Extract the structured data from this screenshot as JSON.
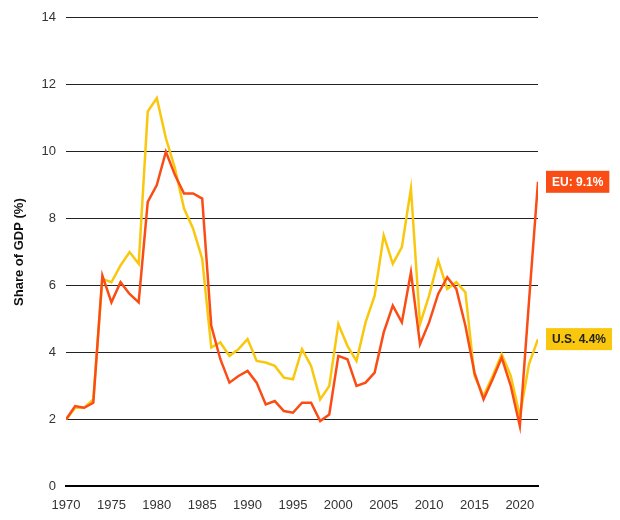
{
  "chart_data": {
    "type": "line",
    "y_label": "Share of GDP (%)",
    "x": [
      1970,
      1971,
      1972,
      1973,
      1974,
      1975,
      1976,
      1977,
      1978,
      1979,
      1980,
      1981,
      1982,
      1983,
      1984,
      1985,
      1986,
      1987,
      1988,
      1989,
      1990,
      1991,
      1992,
      1993,
      1994,
      1995,
      1996,
      1997,
      1998,
      1999,
      2000,
      2001,
      2002,
      2003,
      2004,
      2005,
      2006,
      2007,
      2008,
      2009,
      2010,
      2011,
      2012,
      2013,
      2014,
      2015,
      2016,
      2017,
      2018,
      2019,
      2020,
      2021,
      2022
    ],
    "series": [
      {
        "color": "#fa4d16",
        "values": [
          2.0,
          2.4,
          2.35,
          2.5,
          6.3,
          5.5,
          6.1,
          5.75,
          5.5,
          8.5,
          9.0,
          10.0,
          9.3,
          8.75,
          8.75,
          8.6,
          4.8,
          3.8,
          3.1,
          3.3,
          3.45,
          3.1,
          2.45,
          2.55,
          2.25,
          2.2,
          2.5,
          2.5,
          1.95,
          2.15,
          3.9,
          3.8,
          3.0,
          3.1,
          3.4,
          4.6,
          5.4,
          4.9,
          6.4,
          4.25,
          4.9,
          5.75,
          6.25,
          5.9,
          4.8,
          3.4,
          2.6,
          3.2,
          3.85,
          3.0,
          1.8,
          5.5,
          9.1
        ]
      },
      {
        "color": "#f9c80e",
        "values": [
          2.0,
          2.35,
          2.35,
          2.6,
          6.2,
          6.1,
          6.6,
          7.0,
          6.65,
          11.2,
          11.6,
          10.4,
          9.5,
          8.3,
          7.7,
          6.8,
          4.15,
          4.3,
          3.9,
          4.1,
          4.4,
          3.75,
          3.7,
          3.6,
          3.25,
          3.2,
          4.1,
          3.6,
          2.6,
          3.0,
          4.85,
          4.2,
          3.75,
          4.9,
          5.7,
          7.5,
          6.65,
          7.15,
          8.9,
          4.85,
          5.7,
          6.75,
          5.9,
          6.1,
          5.8,
          3.3,
          2.7,
          3.3,
          3.95,
          3.3,
          2.1,
          3.65,
          4.4
        ]
      }
    ],
    "annotations": [
      {
        "text": "EU: 9.1%",
        "x": 2022,
        "y": 9.1,
        "color": "#fa4d16"
      },
      {
        "text": "U.S. 4.4%",
        "x": 2022,
        "y": 4.4,
        "color": "#f9c80e"
      }
    ],
    "xlim": [
      1970,
      2022
    ],
    "xticks": [
      1970,
      1975,
      1980,
      1985,
      1990,
      1995,
      2000,
      2005,
      2010,
      2015,
      2020
    ],
    "ylim": [
      0,
      14
    ],
    "yticks": [
      0,
      2,
      4,
      6,
      8,
      10,
      12,
      14
    ],
    "grid": true
  }
}
